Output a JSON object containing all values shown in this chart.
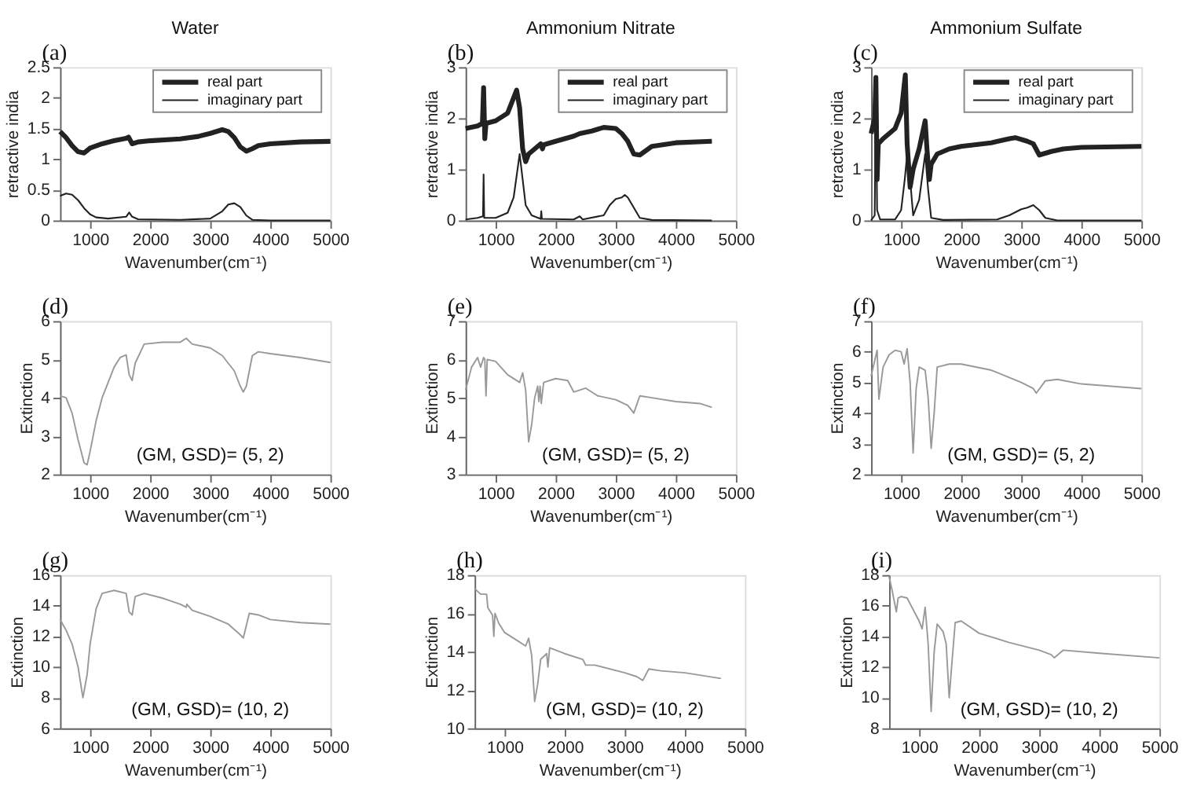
{
  "chart_data": [
    {
      "type": "line",
      "title": "Water",
      "annotations": [
        "(a)"
      ],
      "xlabel": "Wavenumber(cm⁻¹)",
      "ylabel": "retractive india",
      "xlim": [
        500,
        5000
      ],
      "xticks": [
        1000,
        2000,
        3000,
        4000,
        5000
      ],
      "ylim": [
        0,
        2.5
      ],
      "yticks": [
        0,
        0.5,
        1,
        1.5,
        2,
        2.5
      ],
      "legend": "top right",
      "series": [
        {
          "name": "real part",
          "color": "#222222",
          "x": [
            500,
            600,
            700,
            800,
            900,
            1000,
            1200,
            1400,
            1600,
            1640,
            1700,
            1800,
            2000,
            2500,
            2800,
            3000,
            3200,
            3300,
            3400,
            3500,
            3600,
            3700,
            3800,
            4000,
            4500,
            5000
          ],
          "values": [
            1.45,
            1.35,
            1.22,
            1.12,
            1.1,
            1.18,
            1.25,
            1.3,
            1.34,
            1.36,
            1.25,
            1.28,
            1.3,
            1.33,
            1.37,
            1.42,
            1.48,
            1.45,
            1.35,
            1.2,
            1.13,
            1.17,
            1.22,
            1.25,
            1.28,
            1.29
          ]
        },
        {
          "name": "imaginary part",
          "color": "#222222",
          "x": [
            500,
            600,
            700,
            800,
            900,
            1000,
            1100,
            1300,
            1600,
            1650,
            1700,
            1800,
            2500,
            3000,
            3200,
            3300,
            3400,
            3500,
            3600,
            3700,
            4000,
            5000
          ],
          "values": [
            0.4,
            0.44,
            0.42,
            0.33,
            0.2,
            0.1,
            0.05,
            0.03,
            0.06,
            0.13,
            0.06,
            0.02,
            0.01,
            0.03,
            0.15,
            0.26,
            0.28,
            0.22,
            0.08,
            0.01,
            0,
            0
          ]
        }
      ]
    },
    {
      "type": "line",
      "title": "Ammonium Nitrate",
      "annotations": [
        "(b)"
      ],
      "xlabel": "Wavenumber(cm⁻¹)",
      "ylabel": "retractive india",
      "xlim": [
        500,
        5000
      ],
      "xticks": [
        1000,
        2000,
        3000,
        4000,
        5000
      ],
      "ylim": [
        0,
        3
      ],
      "yticks": [
        0,
        1,
        2,
        3
      ],
      "legend": "top right",
      "series": [
        {
          "name": "real part",
          "color": "#222222",
          "x": [
            500,
            700,
            780,
            800,
            820,
            840,
            1000,
            1200,
            1300,
            1350,
            1400,
            1450,
            1500,
            1550,
            1700,
            1750,
            1780,
            1800,
            2000,
            2300,
            2400,
            2600,
            2800,
            3000,
            3100,
            3200,
            3300,
            3400,
            3600,
            4000,
            4600
          ],
          "values": [
            1.8,
            1.85,
            1.9,
            2.6,
            1.6,
            1.9,
            1.95,
            2.1,
            2.4,
            2.55,
            2.2,
            1.4,
            1.15,
            1.3,
            1.45,
            1.5,
            1.4,
            1.48,
            1.55,
            1.65,
            1.7,
            1.75,
            1.82,
            1.8,
            1.7,
            1.55,
            1.3,
            1.28,
            1.45,
            1.52,
            1.55
          ]
        },
        {
          "name": "imaginary part",
          "color": "#222222",
          "x": [
            500,
            700,
            790,
            800,
            810,
            1000,
            1200,
            1300,
            1400,
            1450,
            1500,
            1600,
            1750,
            1760,
            1770,
            2300,
            2400,
            2450,
            2800,
            2900,
            3000,
            3100,
            3150,
            3200,
            3300,
            3400,
            3600,
            4600
          ],
          "values": [
            0.02,
            0.05,
            0.08,
            0.9,
            0.05,
            0.05,
            0.15,
            0.45,
            1.3,
            0.8,
            0.3,
            0.1,
            0.03,
            0.18,
            0.03,
            0.02,
            0.08,
            0.02,
            0.1,
            0.3,
            0.42,
            0.45,
            0.5,
            0.45,
            0.25,
            0.05,
            0.01,
            0
          ]
        }
      ]
    },
    {
      "type": "line",
      "title": "Ammonium Sulfate",
      "annotations": [
        "(c)"
      ],
      "xlabel": "Wavenumber(cm⁻¹)",
      "ylabel": "retractive india",
      "xlim": [
        500,
        5000
      ],
      "xticks": [
        1000,
        2000,
        3000,
        4000,
        5000
      ],
      "ylim": [
        0,
        3
      ],
      "yticks": [
        0,
        1,
        2,
        3
      ],
      "legend": "top right",
      "series": [
        {
          "name": "real part",
          "color": "#222222",
          "x": [
            500,
            560,
            580,
            600,
            620,
            700,
            900,
            1000,
            1070,
            1100,
            1150,
            1200,
            1300,
            1400,
            1430,
            1470,
            1500,
            1600,
            1800,
            2000,
            2500,
            2800,
            2900,
            3100,
            3200,
            3300,
            3500,
            3700,
            4000,
            5000
          ],
          "values": [
            1.7,
            2.0,
            2.8,
            0.8,
            1.5,
            1.6,
            1.8,
            2.1,
            2.85,
            1.5,
            0.65,
            1.0,
            1.4,
            1.95,
            1.4,
            0.8,
            1.1,
            1.3,
            1.4,
            1.45,
            1.52,
            1.6,
            1.62,
            1.55,
            1.5,
            1.28,
            1.35,
            1.4,
            1.43,
            1.45
          ]
        },
        {
          "name": "imaginary part",
          "color": "#222222",
          "x": [
            500,
            560,
            580,
            600,
            650,
            900,
            1000,
            1060,
            1100,
            1150,
            1200,
            1300,
            1400,
            1450,
            1500,
            1700,
            2600,
            2800,
            3000,
            3100,
            3200,
            3300,
            3400,
            3600,
            5000
          ],
          "values": [
            0,
            0.1,
            2.8,
            0.2,
            0.02,
            0.02,
            0.2,
            0.8,
            1.3,
            0.8,
            0.1,
            0.4,
            1.3,
            0.6,
            0.05,
            0.01,
            0.02,
            0.1,
            0.22,
            0.25,
            0.3,
            0.2,
            0.05,
            0,
            0
          ]
        }
      ]
    },
    {
      "type": "line",
      "annotations": [
        "(d)",
        "(GM, GSD)= (5, 2)"
      ],
      "xlabel": "Wavenumber(cm⁻¹)",
      "ylabel": "Extinction",
      "xlim": [
        500,
        5000
      ],
      "xticks": [
        1000,
        2000,
        3000,
        4000,
        5000
      ],
      "ylim": [
        2,
        6
      ],
      "yticks": [
        2,
        3,
        4,
        5,
        6
      ],
      "series": [
        {
          "color": "#999999",
          "x": [
            500,
            600,
            700,
            800,
            900,
            950,
            1000,
            1100,
            1200,
            1400,
            1500,
            1600,
            1650,
            1700,
            1750,
            1900,
            2200,
            2500,
            2600,
            2700,
            3000,
            3200,
            3400,
            3500,
            3550,
            3600,
            3700,
            3800,
            4000,
            4500,
            5000
          ],
          "values": [
            4.05,
            4.0,
            3.6,
            2.9,
            2.3,
            2.25,
            2.6,
            3.4,
            4.0,
            4.8,
            5.05,
            5.12,
            4.6,
            4.45,
            4.9,
            5.4,
            5.45,
            5.45,
            5.55,
            5.4,
            5.3,
            5.1,
            4.7,
            4.3,
            4.15,
            4.3,
            5.1,
            5.2,
            5.15,
            5.05,
            4.92
          ]
        }
      ]
    },
    {
      "type": "line",
      "annotations": [
        "(e)",
        "(GM, GSD)= (5, 2)"
      ],
      "xlabel": "Wavenumber(cm⁻¹)",
      "ylabel": "Extinction",
      "xlim": [
        500,
        5000
      ],
      "xticks": [
        1000,
        2000,
        3000,
        4000,
        5000
      ],
      "ylim": [
        3,
        7
      ],
      "yticks": [
        3,
        4,
        5,
        6,
        7
      ],
      "series": [
        {
          "color": "#999999",
          "x": [
            500,
            600,
            700,
            750,
            800,
            820,
            840,
            860,
            1000,
            1200,
            1400,
            1450,
            1500,
            1550,
            1600,
            1650,
            1700,
            1720,
            1740,
            1760,
            1800,
            2000,
            2200,
            2300,
            2500,
            2700,
            3000,
            3200,
            3300,
            3400,
            3600,
            4000,
            4400,
            4600
          ],
          "values": [
            5.2,
            5.8,
            6.05,
            5.8,
            6.05,
            6.0,
            5.05,
            6.0,
            5.95,
            5.6,
            5.4,
            5.65,
            5.2,
            3.85,
            4.3,
            5.0,
            5.3,
            4.9,
            5.3,
            4.85,
            5.4,
            5.5,
            5.45,
            5.15,
            5.25,
            5.05,
            4.95,
            4.8,
            4.6,
            5.05,
            5.0,
            4.9,
            4.85,
            4.75
          ]
        }
      ]
    },
    {
      "type": "line",
      "annotations": [
        "(f)",
        "(GM, GSD)= (5, 2)"
      ],
      "xlabel": "Wavenumber(cm⁻¹)",
      "ylabel": "Extinction",
      "xlim": [
        500,
        5000
      ],
      "xticks": [
        1000,
        2000,
        3000,
        4000,
        5000
      ],
      "ylim": [
        2,
        7
      ],
      "yticks": [
        2,
        3,
        4,
        5,
        6,
        7
      ],
      "series": [
        {
          "color": "#999999",
          "x": [
            500,
            600,
            630,
            700,
            800,
            900,
            1000,
            1050,
            1100,
            1150,
            1200,
            1250,
            1300,
            1400,
            1450,
            1500,
            1550,
            1600,
            1800,
            2000,
            2500,
            3000,
            3200,
            3250,
            3400,
            3600,
            4000,
            5000
          ],
          "values": [
            5.2,
            6.05,
            4.45,
            5.5,
            5.9,
            6.05,
            6.0,
            5.6,
            6.1,
            5.0,
            2.7,
            4.8,
            5.5,
            5.4,
            4.5,
            2.85,
            4.0,
            5.5,
            5.6,
            5.6,
            5.4,
            5.0,
            4.8,
            4.65,
            5.05,
            5.1,
            4.95,
            4.8
          ]
        }
      ]
    },
    {
      "type": "line",
      "annotations": [
        "(g)",
        "(GM, GSD)= (10, 2)"
      ],
      "xlabel": "Wavenumber(cm⁻¹)",
      "ylabel": "Extinction",
      "xlim": [
        500,
        5000
      ],
      "xticks": [
        1000,
        2000,
        3000,
        4000,
        5000
      ],
      "ylim": [
        6,
        16
      ],
      "yticks": [
        6,
        8,
        10,
        12,
        14,
        16
      ],
      "series": [
        {
          "color": "#999999",
          "x": [
            500,
            600,
            700,
            800,
            880,
            950,
            1000,
            1100,
            1200,
            1400,
            1600,
            1650,
            1700,
            1750,
            1900,
            2200,
            2500,
            2600,
            2610,
            2700,
            3000,
            3300,
            3500,
            3550,
            3650,
            3800,
            4000,
            4500,
            5000
          ],
          "values": [
            13.1,
            12.4,
            11.5,
            10.0,
            8.0,
            9.5,
            11.5,
            13.8,
            14.8,
            15.0,
            14.8,
            13.6,
            13.4,
            14.6,
            14.8,
            14.5,
            14.1,
            13.9,
            14.1,
            13.7,
            13.3,
            12.8,
            12.1,
            11.9,
            13.5,
            13.4,
            13.1,
            12.9,
            12.8
          ]
        }
      ]
    },
    {
      "type": "line",
      "annotations": [
        "(h)",
        "(GM, GSD)= (10, 2)"
      ],
      "xlabel": "Wavenumber(cm⁻¹)",
      "ylabel": "Extinction",
      "xlim": [
        500,
        5000
      ],
      "xticks": [
        1000,
        2000,
        3000,
        4000,
        5000
      ],
      "ylim": [
        10,
        18
      ],
      "yticks": [
        10,
        12,
        14,
        16,
        18
      ],
      "series": [
        {
          "color": "#999999",
          "x": [
            500,
            600,
            700,
            720,
            800,
            820,
            840,
            900,
            1000,
            1200,
            1350,
            1400,
            1450,
            1500,
            1550,
            1600,
            1700,
            1720,
            1750,
            2000,
            2300,
            2350,
            2500,
            3000,
            3200,
            3300,
            3400,
            3600,
            4000,
            4600
          ],
          "values": [
            17.3,
            17.0,
            17.0,
            16.3,
            15.9,
            14.8,
            16.0,
            15.5,
            15.0,
            14.6,
            14.3,
            14.7,
            13.8,
            11.4,
            12.3,
            13.6,
            13.9,
            13.2,
            14.2,
            13.9,
            13.6,
            13.3,
            13.3,
            12.9,
            12.7,
            12.5,
            13.1,
            13.0,
            12.9,
            12.6
          ]
        }
      ]
    },
    {
      "type": "line",
      "annotations": [
        "(i)",
        "(GM, GSD)= (10, 2)"
      ],
      "xlabel": "Wavenumber(cm⁻¹)",
      "ylabel": "Extinction",
      "xlim": [
        500,
        5000
      ],
      "xticks": [
        1000,
        2000,
        3000,
        4000,
        5000
      ],
      "ylim": [
        8,
        18
      ],
      "yticks": [
        8,
        10,
        12,
        14,
        16,
        18
      ],
      "series": [
        {
          "color": "#999999",
          "x": [
            500,
            550,
            600,
            620,
            650,
            700,
            800,
            1000,
            1050,
            1100,
            1150,
            1200,
            1250,
            1300,
            1400,
            1450,
            1500,
            1550,
            1600,
            1700,
            2000,
            2500,
            3000,
            3200,
            3250,
            3400,
            4000,
            5000
          ],
          "values": [
            17.9,
            17.0,
            16.0,
            15.6,
            16.5,
            16.6,
            16.5,
            15.0,
            14.5,
            15.9,
            13.5,
            9.1,
            13.0,
            14.8,
            14.3,
            13.5,
            10.0,
            12.5,
            14.9,
            15.0,
            14.2,
            13.6,
            13.1,
            12.8,
            12.6,
            13.1,
            12.9,
            12.6
          ]
        }
      ]
    }
  ]
}
